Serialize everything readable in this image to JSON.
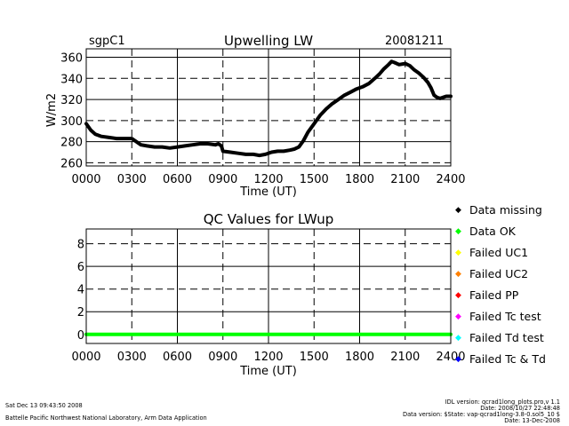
{
  "header": {
    "site": "sgpC1",
    "date": "20081211"
  },
  "chart_data": [
    {
      "type": "line",
      "title": "Upwelling LW",
      "xlabel": "Time (UT)",
      "ylabel": "W/m2",
      "xlim": [
        0,
        24
      ],
      "ylim": [
        257,
        368
      ],
      "xticks": [
        "0000",
        "0300",
        "0600",
        "0900",
        "1200",
        "1500",
        "1800",
        "2100",
        "2400"
      ],
      "yticks": [
        "260",
        "280",
        "300",
        "320",
        "340",
        "360"
      ],
      "grid": true,
      "series": [
        {
          "color": "#000000",
          "x": [
            0,
            0.3,
            0.6,
            1,
            1.5,
            2,
            2.5,
            3,
            3.2,
            3.6,
            4,
            4.5,
            5,
            5.5,
            6,
            6.5,
            7,
            7.5,
            8,
            8.5,
            8.7,
            8.9,
            9,
            9.5,
            10,
            10.5,
            11,
            11.4,
            11.8,
            12.2,
            12.6,
            13,
            13.4,
            13.7,
            14,
            14.3,
            14.6,
            15,
            15.4,
            15.8,
            16.2,
            16.6,
            17,
            17.4,
            17.8,
            18.2,
            18.6,
            19,
            19.3,
            19.6,
            19.9,
            20.1,
            20.3,
            20.6,
            21,
            21.3,
            21.6,
            21.9,
            22.2,
            22.5,
            22.7,
            22.9,
            23.1,
            23.3,
            23.5,
            23.7,
            24
          ],
          "y": [
            297,
            291,
            287,
            285,
            284,
            283,
            283,
            283,
            281,
            277,
            276,
            275,
            275,
            274,
            275,
            276,
            277,
            278,
            278,
            277,
            278,
            276,
            271,
            270,
            269,
            268,
            268,
            267,
            268,
            270,
            271,
            271,
            272,
            273,
            275,
            281,
            289,
            297,
            305,
            311,
            316,
            320,
            324,
            327,
            330,
            332,
            335,
            340,
            344,
            349,
            353,
            356,
            355,
            353,
            354,
            352,
            348,
            345,
            341,
            336,
            331,
            324,
            322,
            321,
            322,
            323,
            323
          ]
        }
      ]
    },
    {
      "type": "line",
      "title": "QC Values for LWup",
      "xlabel": "Time (UT)",
      "ylabel": "",
      "xlim": [
        0,
        24
      ],
      "ylim": [
        -0.8,
        9.3
      ],
      "xticks": [
        "0000",
        "0300",
        "0600",
        "0900",
        "1200",
        "1500",
        "1800",
        "2100",
        "2400"
      ],
      "yticks": [
        "0",
        "2",
        "4",
        "6",
        "8"
      ],
      "grid": true,
      "series": [
        {
          "color": "#00ff00",
          "x": [
            0,
            24
          ],
          "y": [
            0,
            0
          ]
        }
      ],
      "legend": {
        "placement": "right",
        "entries": [
          {
            "label": "Data missing",
            "color": "#000000"
          },
          {
            "label": "Data OK",
            "color": "#00ff00"
          },
          {
            "label": "Failed UC1",
            "color": "#ffff00"
          },
          {
            "label": "Failed UC2",
            "color": "#ff8000"
          },
          {
            "label": "Failed PP",
            "color": "#ff0000"
          },
          {
            "label": "Failed Tc test",
            "color": "#ff00ff"
          },
          {
            "label": "Failed Td test",
            "color": "#00ffff"
          },
          {
            "label": "Failed Tc & Td",
            "color": "#0000ff"
          }
        ]
      }
    }
  ],
  "footer": {
    "timestamp": "Sat Dec 13 09:43:50 2008",
    "lab": "Battelle Pacific Northwest National Laboratory, Arm Data Application",
    "idl_version": "IDL version: qcrad1long_plots.pro,v 1.1",
    "idl_date": "Date: 2008/10/27 22:48:48",
    "data_version": "Data version: $State: vap-qcrad1long-3.8-0.sol5_10 $",
    "data_date": "Date: 13-Dec-2008"
  }
}
